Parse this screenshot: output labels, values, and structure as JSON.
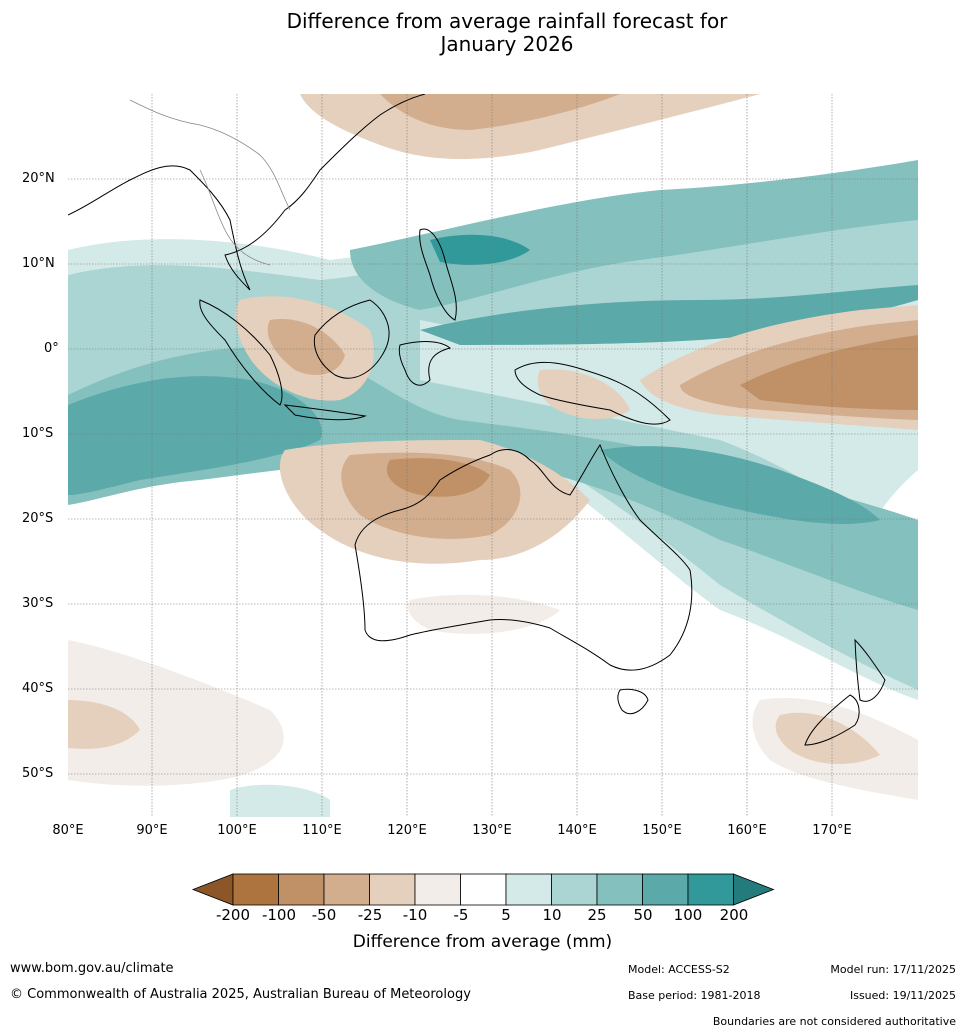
{
  "title_line1": "Difference from average rainfall forecast for",
  "title_line2": "January 2026",
  "lat_labels": [
    "20°N",
    "10°N",
    "0°",
    "10°S",
    "20°S",
    "30°S",
    "40°S",
    "50°S"
  ],
  "lon_labels": [
    "80°E",
    "90°E",
    "100°E",
    "110°E",
    "120°E",
    "130°E",
    "140°E",
    "150°E",
    "160°E",
    "170°E"
  ],
  "colorbar": {
    "ticks": [
      "-200",
      "-100",
      "-50",
      "-25",
      "-10",
      "-5",
      "5",
      "10",
      "25",
      "50",
      "100",
      "200"
    ],
    "colors": [
      "#8c5628",
      "#ae743f",
      "#c09066",
      "#d2ae8e",
      "#e5d0bd",
      "#f2ede8",
      "#ffffff",
      "#d4eae8",
      "#aad5d3",
      "#83c0be",
      "#5ba9a8",
      "#32999a",
      "#247b7c"
    ],
    "title": "Difference from average (mm)"
  },
  "footer": {
    "url": "www.bom.gov.au/climate",
    "copyright": "© Commonwealth of Australia 2025, Australian Bureau of Meteorology",
    "model": "Model: ACCESS-S2",
    "base_period": "Base period: 1981-2018",
    "model_run": "Model run: 17/11/2025",
    "issued": "Issued: 19/11/2025",
    "disclaimer": "Boundaries are not considered authoritative"
  }
}
